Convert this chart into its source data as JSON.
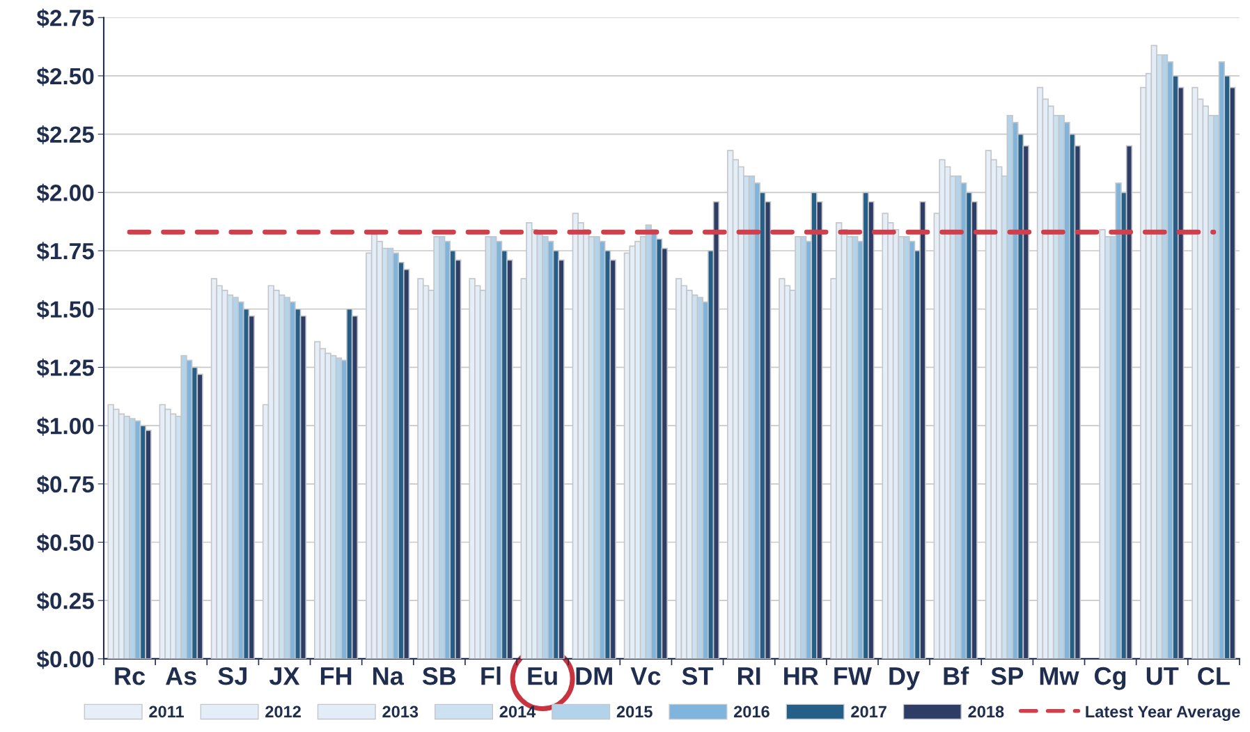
{
  "chart_data": {
    "type": "bar",
    "categories": [
      "Rc",
      "As",
      "SJ",
      "JX",
      "FH",
      "Na",
      "SB",
      "Fl",
      "Eu",
      "DM",
      "Vc",
      "ST",
      "RI",
      "HR",
      "FW",
      "Dy",
      "Bf",
      "SP",
      "Mw",
      "Cg",
      "UT",
      "CL"
    ],
    "series": [
      {
        "name": "2011",
        "color": "#e6eff8",
        "values": [
          1.09,
          1.09,
          1.63,
          1.09,
          1.36,
          1.74,
          1.63,
          1.63,
          1.63,
          1.91,
          1.74,
          1.63,
          2.18,
          1.63,
          1.63,
          1.91,
          1.91,
          2.18,
          2.45,
          null,
          2.45,
          2.45
        ]
      },
      {
        "name": "2012",
        "color": "#e4eef8",
        "values": [
          1.07,
          1.07,
          1.6,
          1.6,
          1.33,
          1.82,
          1.6,
          1.6,
          1.87,
          1.87,
          1.77,
          1.6,
          2.14,
          1.6,
          1.87,
          1.87,
          2.14,
          2.14,
          2.4,
          null,
          2.51,
          2.4
        ]
      },
      {
        "name": "2013",
        "color": "#e2edf7",
        "values": [
          1.05,
          1.05,
          1.58,
          1.58,
          1.31,
          1.79,
          1.58,
          1.58,
          1.84,
          1.84,
          1.79,
          1.58,
          2.11,
          1.58,
          1.84,
          1.84,
          2.11,
          2.11,
          2.37,
          1.84,
          2.63,
          2.37
        ]
      },
      {
        "name": "2014",
        "color": "#cde2f1",
        "values": [
          1.04,
          1.04,
          1.56,
          1.56,
          1.3,
          1.76,
          1.81,
          1.81,
          1.82,
          1.81,
          1.81,
          1.56,
          2.07,
          1.81,
          1.81,
          1.81,
          2.07,
          2.07,
          2.33,
          1.81,
          2.59,
          2.33
        ]
      },
      {
        "name": "2015",
        "color": "#b3d3ea",
        "values": [
          1.03,
          1.3,
          1.55,
          1.55,
          1.29,
          1.76,
          1.81,
          1.81,
          1.81,
          1.81,
          1.86,
          1.55,
          2.07,
          1.81,
          1.81,
          1.81,
          2.07,
          2.33,
          2.33,
          1.81,
          2.59,
          2.33
        ]
      },
      {
        "name": "2016",
        "color": "#7fb5dd",
        "values": [
          1.02,
          1.28,
          1.53,
          1.53,
          1.28,
          1.74,
          1.79,
          1.79,
          1.79,
          1.79,
          1.84,
          1.53,
          2.04,
          1.79,
          1.79,
          1.79,
          2.04,
          2.3,
          2.3,
          2.04,
          2.56,
          2.56
        ]
      },
      {
        "name": "2017",
        "color": "#255f87",
        "values": [
          1.0,
          1.25,
          1.5,
          1.5,
          1.5,
          1.7,
          1.75,
          1.75,
          1.75,
          1.75,
          1.8,
          1.75,
          2.0,
          2.0,
          2.0,
          1.75,
          2.0,
          2.25,
          2.25,
          2.0,
          2.5,
          2.5
        ]
      },
      {
        "name": "2018",
        "color": "#2e3d66",
        "values": [
          0.98,
          1.22,
          1.47,
          1.47,
          1.47,
          1.67,
          1.71,
          1.71,
          1.71,
          1.71,
          1.76,
          1.96,
          1.96,
          1.96,
          1.96,
          1.96,
          1.96,
          2.2,
          2.2,
          2.2,
          2.45,
          2.45
        ]
      }
    ],
    "ylim": [
      0,
      2.75
    ],
    "yticks": [
      {
        "value": 0,
        "label": "$0.00"
      },
      {
        "value": 0.25,
        "label": "$0.25"
      },
      {
        "value": 0.5,
        "label": "$0.50"
      },
      {
        "value": 0.75,
        "label": "$0.75"
      },
      {
        "value": 1.0,
        "label": "$1.00"
      },
      {
        "value": 1.25,
        "label": "$1.25"
      },
      {
        "value": 1.5,
        "label": "$1.50"
      },
      {
        "value": 1.75,
        "label": "$1.75"
      },
      {
        "value": 2.0,
        "label": "$2.00"
      },
      {
        "value": 2.25,
        "label": "$2.25"
      },
      {
        "value": 2.5,
        "label": "$2.50"
      },
      {
        "value": 2.75,
        "label": "$2.75"
      }
    ],
    "ref_lines": [
      {
        "axis": "y",
        "value": 1.83,
        "label": "Latest Year Average",
        "color": "#d0404c",
        "line_style": "dashed"
      }
    ],
    "grid": "y",
    "legend": "bottom"
  }
}
